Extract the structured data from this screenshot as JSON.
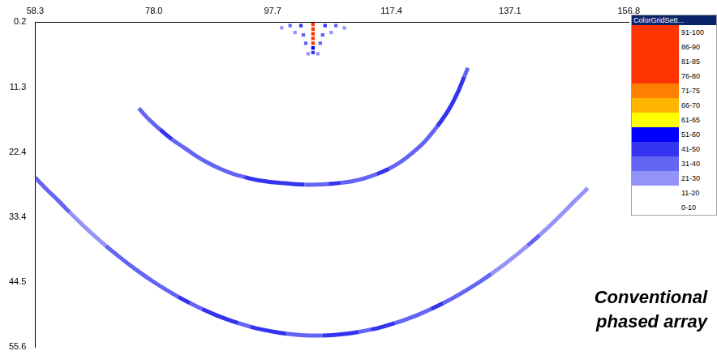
{
  "chart_data": {
    "type": "heatmap",
    "annotation": "Conventional phased array",
    "xlim": [
      58.3,
      156.8
    ],
    "xticks": [
      58.3,
      {
        "value": 78,
        "label": "78.0"
      },
      97.7,
      117.4,
      137.1,
      156.8
    ],
    "ylim": [
      0.2,
      55.6
    ],
    "yticks": [
      0.2,
      11.3,
      22.4,
      33.4,
      44.5,
      55.6
    ],
    "grid": false,
    "colorbar": {
      "title": "ColorGridSett...",
      "bins": [
        {
          "label": "91-100",
          "min": 91,
          "max": 100,
          "color": "#ff3300"
        },
        {
          "label": "86-90",
          "min": 86,
          "max": 90,
          "color": "#ff3300"
        },
        {
          "label": "81-85",
          "min": 81,
          "max": 85,
          "color": "#ff3300"
        },
        {
          "label": "76-80",
          "min": 76,
          "max": 80,
          "color": "#ff3300"
        },
        {
          "label": "71-75",
          "min": 71,
          "max": 75,
          "color": "#ff8000"
        },
        {
          "label": "66-70",
          "min": 66,
          "max": 70,
          "color": "#ffb400"
        },
        {
          "label": "61-65",
          "min": 61,
          "max": 65,
          "color": "#ffff00"
        },
        {
          "label": "51-60",
          "min": 51,
          "max": 60,
          "color": "#0000ff"
        },
        {
          "label": "41-50",
          "min": 41,
          "max": 50,
          "color": "#3333f0"
        },
        {
          "label": "31-40",
          "min": 31,
          "max": 40,
          "color": "#6464f5"
        },
        {
          "label": "21-30",
          "min": 21,
          "max": 30,
          "color": "#9494f8"
        },
        {
          "label": "11-20",
          "min": 11,
          "max": 20,
          "color": "#ffffff"
        },
        {
          "label": "0-10",
          "min": 0,
          "max": 10,
          "color": "#ffffff"
        }
      ]
    },
    "series": [
      {
        "marker": "rect",
        "line_style": "none",
        "values": [
          [
            104.4,
            0.6,
            95
          ],
          [
            104.4,
            1.4,
            95
          ],
          [
            104.4,
            2.2,
            95
          ],
          [
            104.4,
            3.0,
            92
          ],
          [
            104.4,
            3.8,
            88
          ],
          [
            104.4,
            4.6,
            55
          ],
          [
            104.4,
            5.4,
            45
          ],
          [
            102.4,
            0.8,
            45
          ],
          [
            106.4,
            0.8,
            45
          ],
          [
            100.6,
            0.8,
            35
          ],
          [
            108.2,
            0.8,
            35
          ],
          [
            99.2,
            1.2,
            25
          ],
          [
            109.6,
            1.2,
            25
          ],
          [
            102.8,
            2.4,
            40
          ],
          [
            106.0,
            2.4,
            40
          ],
          [
            101.4,
            2.0,
            30
          ],
          [
            107.4,
            2.0,
            30
          ],
          [
            103.2,
            3.8,
            35
          ],
          [
            105.6,
            3.8,
            35
          ],
          [
            103.6,
            5.6,
            28
          ],
          [
            105.2,
            5.6,
            28
          ]
        ]
      },
      {
        "marker": "none",
        "line_style": "solid",
        "values": [
          [
            75.5,
            14.9,
            28
          ],
          [
            77,
            16.6,
            35
          ],
          [
            79,
            18.5,
            38
          ],
          [
            81,
            20.2,
            42
          ],
          [
            83,
            21.6,
            40
          ],
          [
            85,
            23.0,
            38
          ],
          [
            87,
            24.2,
            36
          ],
          [
            89,
            25.2,
            34
          ],
          [
            91,
            26.0,
            33
          ],
          [
            93,
            26.6,
            36
          ],
          [
            95,
            27.1,
            42
          ],
          [
            97,
            27.4,
            45
          ],
          [
            99,
            27.6,
            44
          ],
          [
            101,
            27.8,
            46
          ],
          [
            103,
            27.9,
            42
          ],
          [
            105,
            27.9,
            35
          ],
          [
            107,
            27.8,
            38
          ],
          [
            109,
            27.6,
            44
          ],
          [
            111,
            27.3,
            40
          ],
          [
            113,
            26.8,
            36
          ],
          [
            115,
            26.1,
            38
          ],
          [
            117,
            25.2,
            42
          ],
          [
            119,
            24.0,
            40
          ],
          [
            121,
            22.4,
            38
          ],
          [
            123,
            20.5,
            36
          ],
          [
            125,
            18.0,
            40
          ],
          [
            127,
            15.0,
            44
          ],
          [
            128.5,
            12.0,
            46
          ],
          [
            129.5,
            9.5,
            42
          ],
          [
            130.1,
            8.0,
            32
          ]
        ]
      },
      {
        "marker": "none",
        "line_style": "solid",
        "values": [
          [
            58.3,
            26.7,
            28
          ],
          [
            60,
            28.5,
            32
          ],
          [
            62,
            30.5,
            35
          ],
          [
            64,
            32.6,
            33
          ],
          [
            66,
            34.6,
            30
          ],
          [
            68,
            36.5,
            28
          ],
          [
            70,
            38.3,
            30
          ],
          [
            72,
            40.0,
            32
          ],
          [
            74,
            41.6,
            34
          ],
          [
            76,
            43.1,
            35
          ],
          [
            78,
            44.5,
            36
          ],
          [
            80,
            45.8,
            38
          ],
          [
            82,
            47.0,
            40
          ],
          [
            84,
            48.1,
            42
          ],
          [
            86,
            49.1,
            40
          ],
          [
            88,
            50.0,
            44
          ],
          [
            90,
            50.8,
            46
          ],
          [
            92,
            51.5,
            42
          ],
          [
            94,
            52.1,
            40
          ],
          [
            96,
            52.6,
            44
          ],
          [
            98,
            53.0,
            46
          ],
          [
            100,
            53.3,
            42
          ],
          [
            102,
            53.5,
            38
          ],
          [
            104,
            53.6,
            36
          ],
          [
            106,
            53.6,
            38
          ],
          [
            108,
            53.5,
            42
          ],
          [
            110,
            53.3,
            46
          ],
          [
            112,
            53.0,
            44
          ],
          [
            114,
            52.6,
            40
          ],
          [
            116,
            52.1,
            42
          ],
          [
            118,
            51.5,
            44
          ],
          [
            120,
            50.8,
            40
          ],
          [
            122,
            50.0,
            38
          ],
          [
            124,
            49.1,
            40
          ],
          [
            126,
            48.1,
            42
          ],
          [
            128,
            47.0,
            38
          ],
          [
            130,
            45.8,
            36
          ],
          [
            132,
            44.5,
            34
          ],
          [
            134,
            43.1,
            32
          ],
          [
            136,
            41.6,
            30
          ],
          [
            138,
            40.0,
            28
          ],
          [
            140,
            38.3,
            30
          ],
          [
            142,
            36.5,
            32
          ],
          [
            144,
            34.6,
            30
          ],
          [
            146,
            32.6,
            28
          ],
          [
            148,
            30.5,
            26
          ],
          [
            150,
            28.5,
            24
          ]
        ]
      }
    ]
  }
}
